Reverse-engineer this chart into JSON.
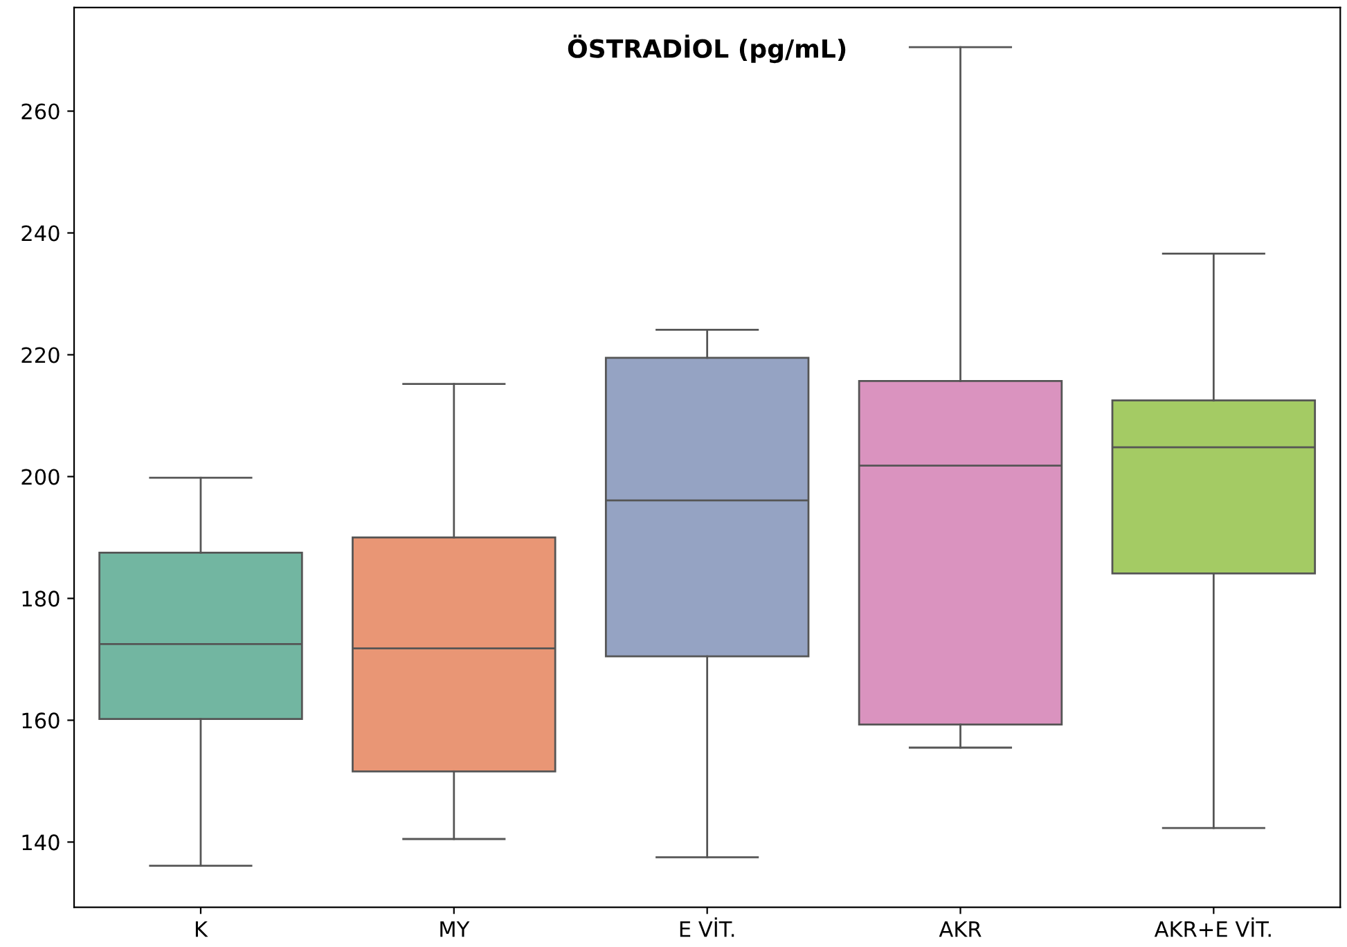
{
  "chart_data": {
    "type": "box",
    "title": "ÖSTRADİOL (pg/mL)",
    "categories": [
      "K",
      "MY",
      "E VİT.",
      "AKR",
      "AKR+E VİT."
    ],
    "colors": [
      "#72b6a1",
      "#e99675",
      "#95a3c3",
      "#da93bf",
      "#a4cb64"
    ],
    "boxes": [
      {
        "low": 136.1,
        "q1": 160.2,
        "median": 172.5,
        "q3": 187.5,
        "high": 199.8
      },
      {
        "low": 140.5,
        "q1": 151.6,
        "median": 171.8,
        "q3": 190.0,
        "high": 215.2
      },
      {
        "low": 137.5,
        "q1": 170.5,
        "median": 196.1,
        "q3": 219.5,
        "high": 224.1
      },
      {
        "low": 155.5,
        "q1": 159.3,
        "median": 201.8,
        "q3": 215.7,
        "high": 270.5
      },
      {
        "low": 142.3,
        "q1": 184.1,
        "median": 204.8,
        "q3": 212.5,
        "high": 236.6
      }
    ],
    "ylim": [
      129.3,
      277
    ],
    "yticks": [
      140,
      160,
      180,
      200,
      220,
      240,
      260
    ],
    "grid": false,
    "legend": false
  }
}
